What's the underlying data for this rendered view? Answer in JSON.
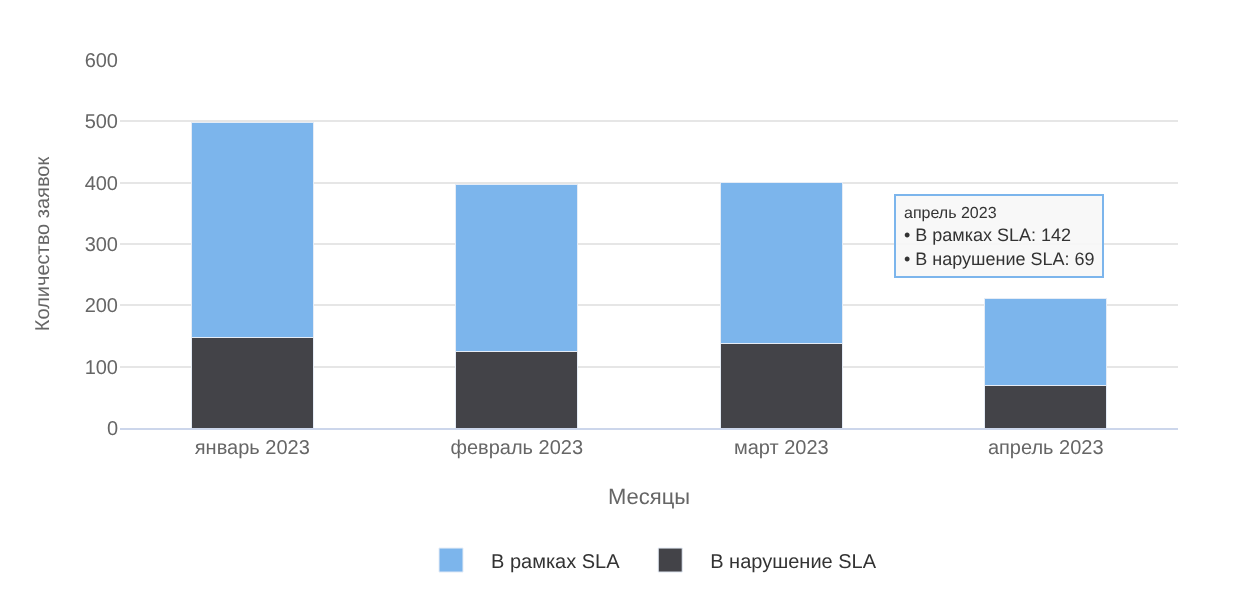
{
  "chart_data": {
    "type": "bar",
    "stacked": true,
    "xlabel": "Месяцы",
    "ylabel": "Количество заявок",
    "categories": [
      "январь 2023",
      "февраль 2023",
      "март 2023",
      "апрель 2023"
    ],
    "series": [
      {
        "name": "В нарушение SLA",
        "color": "#434348",
        "values": [
          148,
          125,
          137,
          69
        ]
      },
      {
        "name": "В рамках SLA",
        "color": "#7cb5ec",
        "values": [
          350,
          272,
          263,
          142
        ]
      }
    ],
    "ylim": [
      0,
      600
    ],
    "yticks": [
      0,
      100,
      200,
      300,
      400,
      500,
      600
    ],
    "grid": "y",
    "legend": "bottom",
    "annotations": [
      "апрель 2023",
      "• В рамках SLA: 142",
      "• В нарушение SLA: 69"
    ]
  }
}
